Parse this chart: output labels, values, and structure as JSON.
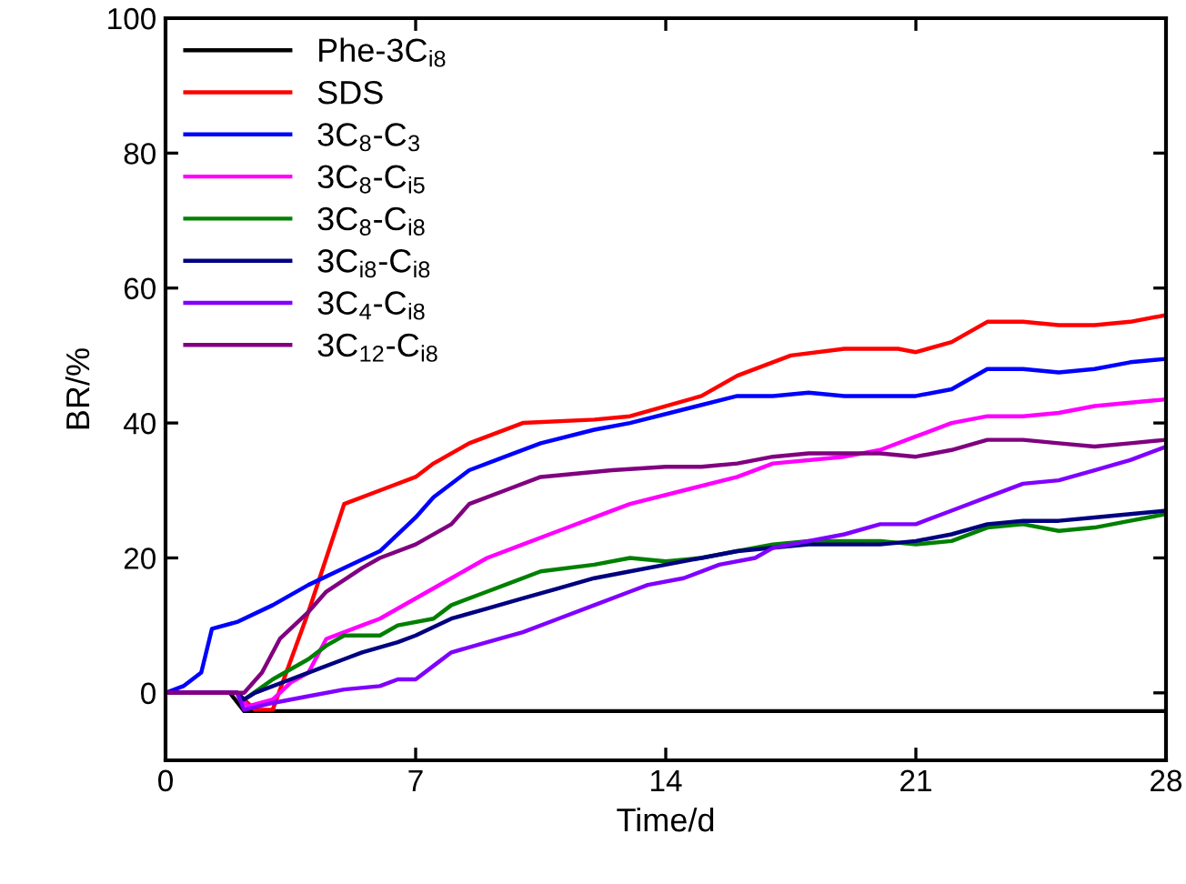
{
  "chart_data": {
    "type": "line",
    "xlabel": "Time/d",
    "ylabel": "BR/%",
    "xlim": [
      0,
      28
    ],
    "ylim": [
      -10,
      100
    ],
    "xticks": [
      0,
      7,
      14,
      21,
      28
    ],
    "yticks": [
      0,
      20,
      40,
      60,
      80,
      100
    ],
    "grid": false,
    "legend": "top left",
    "line_style": "solid",
    "marker": "none",
    "series": [
      {
        "name": "Phe-3C$_{i8}$",
        "color": "#000000",
        "x": [
          0,
          1,
          1.8,
          2.2,
          5,
          10,
          15,
          20,
          25,
          28
        ],
        "values": [
          0,
          0,
          0,
          -2.7,
          -2.7,
          -2.7,
          -2.7,
          -2.7,
          -2.7,
          -2.7
        ]
      },
      {
        "name": "SDS",
        "color": "#ff0000",
        "x": [
          0,
          1,
          2,
          2.5,
          3,
          4,
          5,
          6,
          7,
          7.5,
          8.5,
          10,
          12,
          13,
          15,
          16,
          17.5,
          19,
          20.5,
          21,
          22,
          23,
          24,
          25,
          26,
          27,
          28
        ],
        "values": [
          0,
          0,
          0,
          -2.5,
          -2.5,
          12,
          28,
          30,
          32,
          34,
          37,
          40,
          40.5,
          41,
          44,
          47,
          50,
          51,
          51,
          50.5,
          52,
          55,
          55,
          54.5,
          54.5,
          55,
          56
        ]
      },
      {
        "name": "3C$_{8}$-C$_{3}$",
        "color": "#0000ff",
        "x": [
          0,
          0.5,
          1,
          1.3,
          2,
          3,
          4,
          5,
          6,
          7,
          7.5,
          8.5,
          9.5,
          10.5,
          12,
          13,
          14.5,
          16,
          17,
          18,
          19,
          20,
          21,
          22,
          23,
          24,
          25,
          26,
          27,
          28
        ],
        "values": [
          0,
          1,
          3,
          9.5,
          10.5,
          13,
          16,
          18.5,
          21,
          26,
          29,
          33,
          35,
          37,
          39,
          40,
          42,
          44,
          44,
          44.5,
          44,
          44,
          44,
          45,
          48,
          48,
          47.5,
          48,
          49,
          49.5
        ]
      },
      {
        "name": "3C$_{8}$-C$_{i5}$",
        "color": "#ff00ff",
        "x": [
          0,
          1,
          2,
          2.3,
          3,
          3.5,
          4,
          4.5,
          5.5,
          6,
          7,
          8,
          9,
          10,
          11,
          12,
          13,
          14.5,
          16,
          17,
          19,
          20,
          21,
          22,
          23,
          24,
          25,
          26,
          27,
          28
        ],
        "values": [
          0,
          0,
          0,
          -2,
          -1,
          1.5,
          3,
          8,
          10,
          11,
          14,
          17,
          20,
          22,
          24,
          26,
          28,
          30,
          32,
          34,
          35,
          36,
          38,
          40,
          41,
          41,
          41.5,
          42.5,
          43,
          43.5
        ]
      },
      {
        "name": "3C$_{8}$-C$_{i8}$",
        "color": "#008000",
        "x": [
          2,
          2.2,
          3,
          4,
          4.5,
          5,
          6,
          6.5,
          7.5,
          8,
          9,
          9.5,
          10.5,
          12,
          13,
          14,
          15,
          16,
          17,
          18,
          20,
          21,
          22,
          23,
          24,
          25,
          26,
          27,
          28
        ],
        "values": [
          0,
          -1,
          2,
          5,
          7,
          8.5,
          8.5,
          10,
          11,
          13,
          15,
          16,
          18,
          19,
          20,
          19.5,
          20,
          21,
          22,
          22.5,
          22.5,
          22,
          22.5,
          24.5,
          25,
          24,
          24.5,
          25.5,
          26.5
        ]
      },
      {
        "name": "3C$_{i8}$-C$_{i8}$",
        "color": "#000080",
        "x": [
          0,
          1,
          2,
          2.2,
          2.5,
          3.5,
          4,
          5,
          5.5,
          6.5,
          7,
          8,
          9,
          10,
          11,
          12,
          13,
          14,
          15,
          16,
          17,
          18,
          20,
          21,
          22,
          23,
          24,
          25,
          26,
          27,
          28
        ],
        "values": [
          0,
          0,
          0,
          -1,
          0,
          2,
          3,
          5,
          6,
          7.5,
          8.5,
          11,
          12.5,
          14,
          15.5,
          17,
          18,
          19,
          20,
          21,
          21.5,
          22,
          22,
          22.5,
          23.5,
          25,
          25.5,
          25.5,
          26,
          26.5,
          27
        ]
      },
      {
        "name": "3C$_{4}$-C$_{i8}$",
        "color": "#8000ff",
        "x": [
          0,
          1,
          2,
          2.2,
          3,
          4,
          5,
          6,
          6.5,
          7,
          7.5,
          8,
          9,
          10,
          11,
          12,
          13,
          13.5,
          14.5,
          15.5,
          16.5,
          17,
          18,
          19,
          20,
          21,
          22,
          23,
          24,
          25,
          26,
          27,
          28
        ],
        "values": [
          0,
          0,
          0,
          -2.5,
          -1.5,
          -0.5,
          0.5,
          1,
          2,
          2,
          4,
          6,
          7.5,
          9,
          11,
          13,
          15,
          16,
          17,
          19,
          20,
          21.5,
          22.5,
          23.5,
          25,
          25,
          27,
          29,
          31,
          31.5,
          33,
          34.5,
          36.5
        ]
      },
      {
        "name": "3C$_{12}$-C$_{i8}$",
        "color": "#800080",
        "x": [
          0,
          1,
          2,
          2.2,
          2.7,
          3.2,
          4,
          4.5,
          5.5,
          6,
          7,
          8,
          8.5,
          9.5,
          10.5,
          11.5,
          12.5,
          14,
          15,
          16,
          17,
          18,
          20,
          21,
          22,
          23,
          24,
          25,
          26,
          27,
          28
        ],
        "values": [
          0,
          0,
          0,
          0,
          3,
          8,
          12,
          15,
          18.5,
          20,
          22,
          25,
          28,
          30,
          32,
          32.5,
          33,
          33.5,
          33.5,
          34,
          35,
          35.5,
          35.5,
          35,
          36,
          37.5,
          37.5,
          37,
          36.5,
          37,
          37.5
        ]
      }
    ]
  }
}
